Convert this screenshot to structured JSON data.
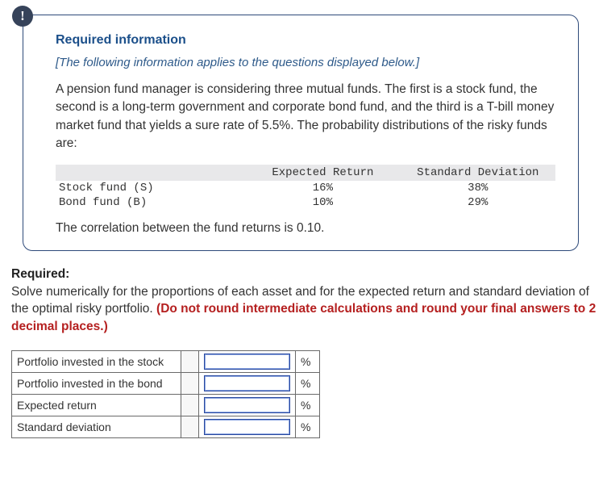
{
  "alert_glyph": "!",
  "info": {
    "heading": "Required information",
    "note": "[The following information applies to the questions displayed below.]",
    "paragraph": "A pension fund manager is considering three mutual funds. The first is a stock fund, the second is a long-term government and corporate bond fund, and the third is a T-bill money market fund that yields a sure rate of 5.5%. The probability distributions of the risky funds are:",
    "table": {
      "headers": {
        "c1": "",
        "c2": "Expected Return",
        "c3": "Standard Deviation"
      },
      "rows": [
        {
          "name": "Stock fund (S)",
          "er": "16%",
          "sd": "38%"
        },
        {
          "name": "Bond fund (B)",
          "er": "10%",
          "sd": "29%"
        }
      ]
    },
    "after_table": "The correlation between the fund returns is 0.10."
  },
  "required": {
    "label": "Required:",
    "text": "Solve numerically for the proportions of each asset and for the expected return and standard deviation of the optimal risky portfolio. ",
    "warn": "(Do not round intermediate calculations and round your final answers to 2 decimal places.)"
  },
  "answers": {
    "rows": [
      {
        "label": "Portfolio invested in the stock",
        "unit": "%"
      },
      {
        "label": "Portfolio invested in the bond",
        "unit": "%"
      },
      {
        "label": "Expected return",
        "unit": "%"
      },
      {
        "label": "Standard deviation",
        "unit": "%"
      }
    ]
  },
  "colors": {
    "box_border": "#2e4a7a",
    "heading": "#1b4f8a",
    "note": "#2e5a8a",
    "warn": "#b52020",
    "table_header_bg": "#e8e8ea",
    "input_border": "#2a4aa0"
  }
}
